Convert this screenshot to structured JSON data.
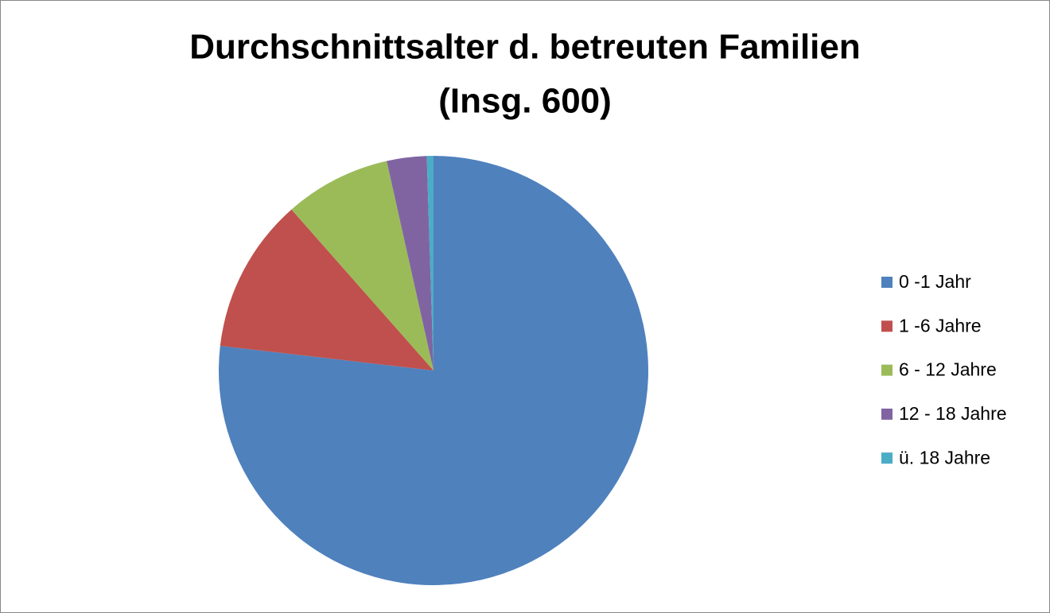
{
  "chart_data": {
    "type": "pie",
    "title": [
      "Durchschnittsalter d. betreuten Familien",
      "(Insg. 600)"
    ],
    "categories": [
      "0 -1 Jahr",
      "1 -6 Jahre",
      "6 - 12 Jahre",
      "12 - 18 Jahre",
      "ü. 18 Jahre"
    ],
    "values": [
      461,
      70,
      48,
      18,
      3
    ],
    "colors": [
      "#4f81bd",
      "#c0504d",
      "#9bbb59",
      "#8064a2",
      "#4bacc6"
    ],
    "legend": "right"
  }
}
